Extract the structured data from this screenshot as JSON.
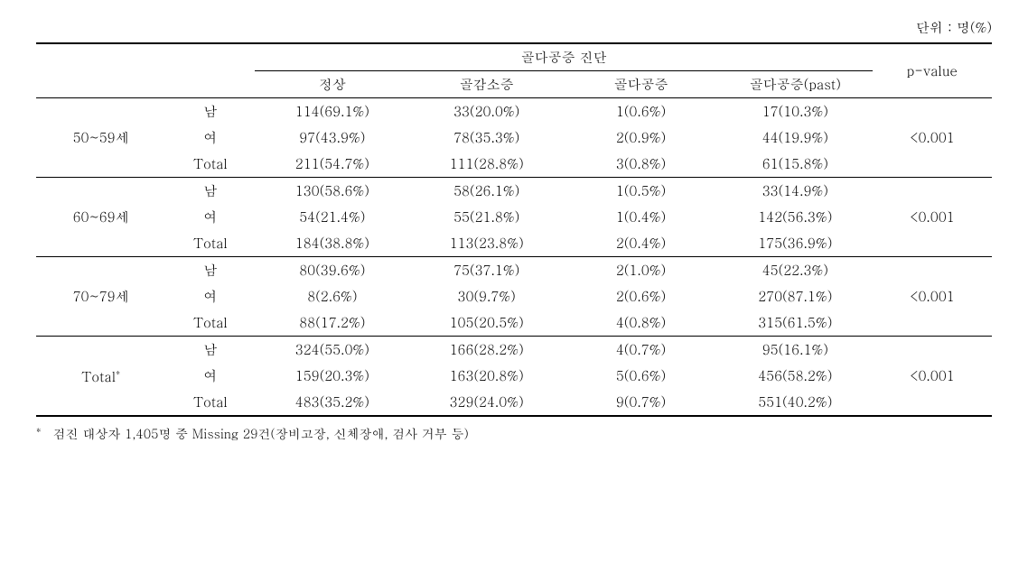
{
  "unit_label": "단위 : 명(%)",
  "header": {
    "diagnosis_group": "골다공증 진단",
    "normal": "정상",
    "osteopenia": "골감소증",
    "osteoporosis": "골다공증",
    "osteoporosis_past": "골다공증(past)",
    "pvalue": "p-value"
  },
  "groups": [
    {
      "age": "50~59세",
      "rows": [
        {
          "sex": "남",
          "c0": "114(69.1%)",
          "c1": "33(20.0%)",
          "c2": "1(0.6%)",
          "c3": "17(10.3%)"
        },
        {
          "sex": "여",
          "c0": "97(43.9%)",
          "c1": "78(35.3%)",
          "c2": "2(0.9%)",
          "c3": "44(19.9%)"
        },
        {
          "sex": "Total",
          "c0": "211(54.7%)",
          "c1": "111(28.8%)",
          "c2": "3(0.8%)",
          "c3": "61(15.8%)"
        }
      ],
      "pvalue": "<0.001"
    },
    {
      "age": "60~69세",
      "rows": [
        {
          "sex": "남",
          "c0": "130(58.6%)",
          "c1": "58(26.1%)",
          "c2": "1(0.5%)",
          "c3": "33(14.9%)"
        },
        {
          "sex": "여",
          "c0": "54(21.4%)",
          "c1": "55(21.8%)",
          "c2": "1(0.4%)",
          "c3": "142(56.3%)"
        },
        {
          "sex": "Total",
          "c0": "184(38.8%)",
          "c1": "113(23.8%)",
          "c2": "2(0.4%)",
          "c3": "175(36.9%)"
        }
      ],
      "pvalue": "<0.001"
    },
    {
      "age": "70~79세",
      "rows": [
        {
          "sex": "남",
          "c0": "80(39.6%)",
          "c1": "75(37.1%)",
          "c2": "2(1.0%)",
          "c3": "45(22.3%)"
        },
        {
          "sex": "여",
          "c0": "8(2.6%)",
          "c1": "30(9.7%)",
          "c2": "2(0.6%)",
          "c3": "270(87.1%)"
        },
        {
          "sex": "Total",
          "c0": "88(17.2%)",
          "c1": "105(20.5%)",
          "c2": "4(0.8%)",
          "c3": "315(61.5%)"
        }
      ],
      "pvalue": "<0.001"
    },
    {
      "age": "Total",
      "age_has_star": true,
      "rows": [
        {
          "sex": "남",
          "c0": "324(55.0%)",
          "c1": "166(28.2%)",
          "c2": "4(0.7%)",
          "c3": "95(16.1%)"
        },
        {
          "sex": "여",
          "c0": "159(20.3%)",
          "c1": "163(20.8%)",
          "c2": "5(0.6%)",
          "c3": "456(58.2%)"
        },
        {
          "sex": "Total",
          "c0": "483(35.2%)",
          "c1": "329(24.0%)",
          "c2": "9(0.7%)",
          "c3": "551(40.2%)"
        }
      ],
      "pvalue": "<0.001"
    }
  ],
  "footnote_mark": "*",
  "footnote": "검진 대상자 1,405명 중 Missing 29건(장비고장, 신체장애, 검사 거부 등)"
}
